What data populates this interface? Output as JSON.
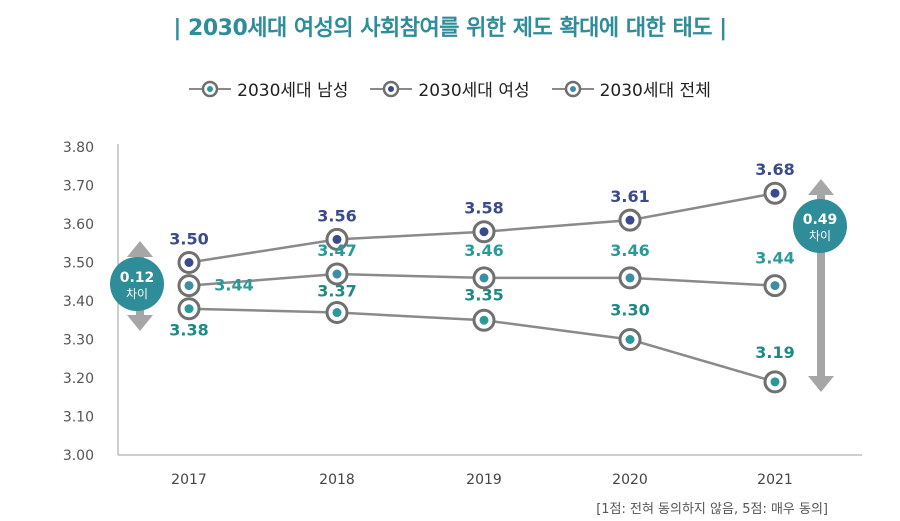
{
  "colors": {
    "title": "#2e8d99",
    "line": "#8a8a8a",
    "male": "#3b4a8c",
    "female": "#2a9a98",
    "total": "#1f8a83",
    "badge": "#2e8d99",
    "arrow": "#a6a6a6"
  },
  "title_text": "| 2030세대 여성의 사회참여를 위한 제도 확대에 대한 태도 |",
  "note_text": "[1점: 전혀 동의하지 않음, 5점: 매우 동의]",
  "chart_data": {
    "type": "line",
    "title": "2030세대 여성의 사회참여를 위한 제도 확대에 대한 태도",
    "categories": [
      "2017",
      "2018",
      "2019",
      "2020",
      "2021"
    ],
    "ylim": [
      3.0,
      3.8
    ],
    "yticks": [
      "3.00",
      "3.10",
      "3.20",
      "3.30",
      "3.40",
      "3.50",
      "3.60",
      "3.70",
      "3.80"
    ],
    "xlabel": "",
    "ylabel": "",
    "legend_position": "top",
    "series": [
      {
        "name": "2030세대 남성",
        "key": "male",
        "values": [
          3.38,
          3.37,
          3.35,
          3.3,
          3.19
        ],
        "labels": [
          "3.38",
          "3.37",
          "3.35",
          "3.30",
          "3.19"
        ]
      },
      {
        "name": "2030세대 여성",
        "key": "female",
        "values": [
          3.5,
          3.56,
          3.58,
          3.61,
          3.68
        ],
        "labels": [
          "3.50",
          "3.56",
          "3.58",
          "3.61",
          "3.68"
        ]
      },
      {
        "name": "2030세대 전체",
        "key": "total",
        "values": [
          3.44,
          3.47,
          3.46,
          3.46,
          3.44
        ],
        "labels": [
          "3.44",
          "3.47",
          "3.46",
          "3.46",
          "3.44"
        ]
      }
    ],
    "annotations": [
      {
        "value": "0.12",
        "label": "차이",
        "category": "2017"
      },
      {
        "value": "0.49",
        "label": "차이",
        "category": "2021"
      }
    ]
  }
}
